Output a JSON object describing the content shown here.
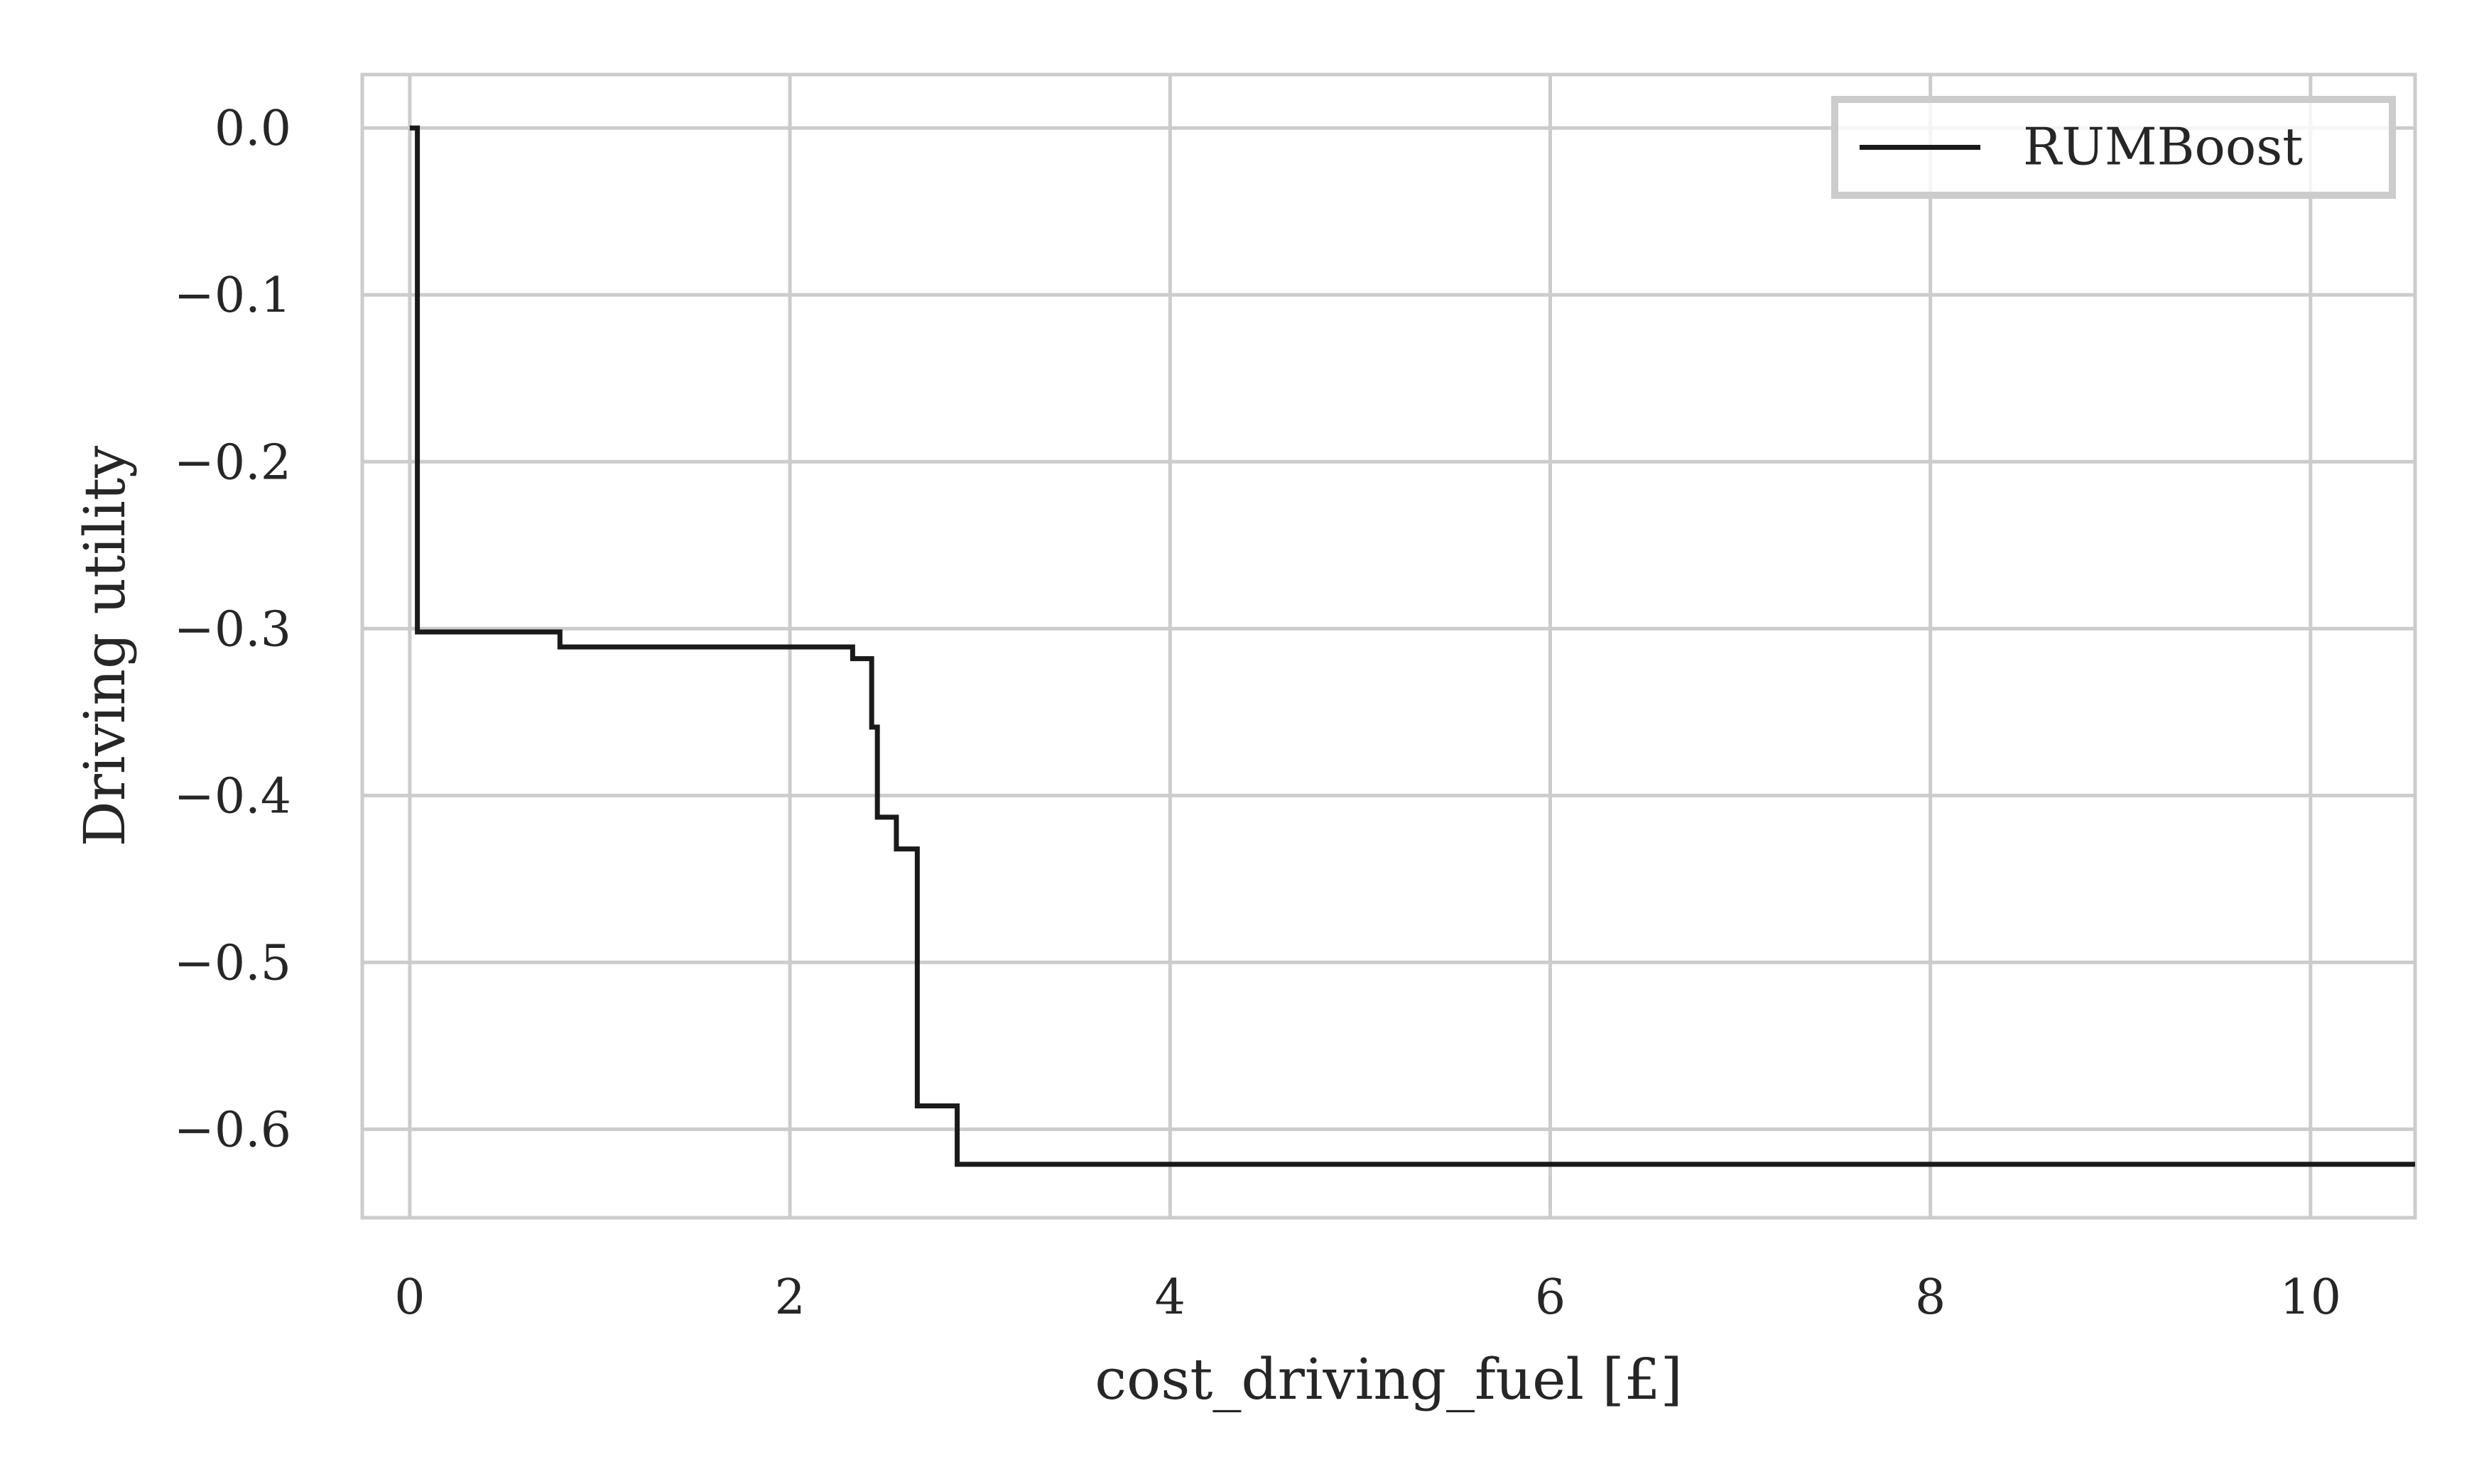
{
  "chart_data": {
    "type": "line",
    "step": true,
    "xlabel": "cost_driving_fuel [£]",
    "ylabel": "Driving utility",
    "xlim": [
      -0.25,
      10.55
    ],
    "ylim": [
      -0.653,
      0.032
    ],
    "xticks": [
      0,
      2,
      4,
      6,
      8,
      10
    ],
    "xtick_labels": [
      "0",
      "2",
      "4",
      "6",
      "8",
      "10"
    ],
    "yticks": [
      0.0,
      -0.1,
      -0.2,
      -0.3,
      -0.4,
      -0.5,
      -0.6
    ],
    "ytick_labels": [
      "0.0",
      "−0.1",
      "−0.2",
      "−0.3",
      "−0.4",
      "−0.5",
      "−0.6"
    ],
    "grid": true,
    "legend": {
      "position": "top-right"
    },
    "series": [
      {
        "name": "RUMBoost",
        "color": "#1a1a1a",
        "points": [
          [
            0.0,
            0.0
          ],
          [
            0.04,
            0.0
          ],
          [
            0.04,
            -0.302
          ],
          [
            0.79,
            -0.302
          ],
          [
            0.79,
            -0.311
          ],
          [
            2.33,
            -0.311
          ],
          [
            2.33,
            -0.318
          ],
          [
            2.43,
            -0.318
          ],
          [
            2.43,
            -0.359
          ],
          [
            2.46,
            -0.359
          ],
          [
            2.46,
            -0.413
          ],
          [
            2.56,
            -0.413
          ],
          [
            2.56,
            -0.432
          ],
          [
            2.67,
            -0.432
          ],
          [
            2.67,
            -0.586
          ],
          [
            2.88,
            -0.586
          ],
          [
            2.88,
            -0.621
          ],
          [
            10.55,
            -0.621
          ]
        ]
      }
    ]
  }
}
